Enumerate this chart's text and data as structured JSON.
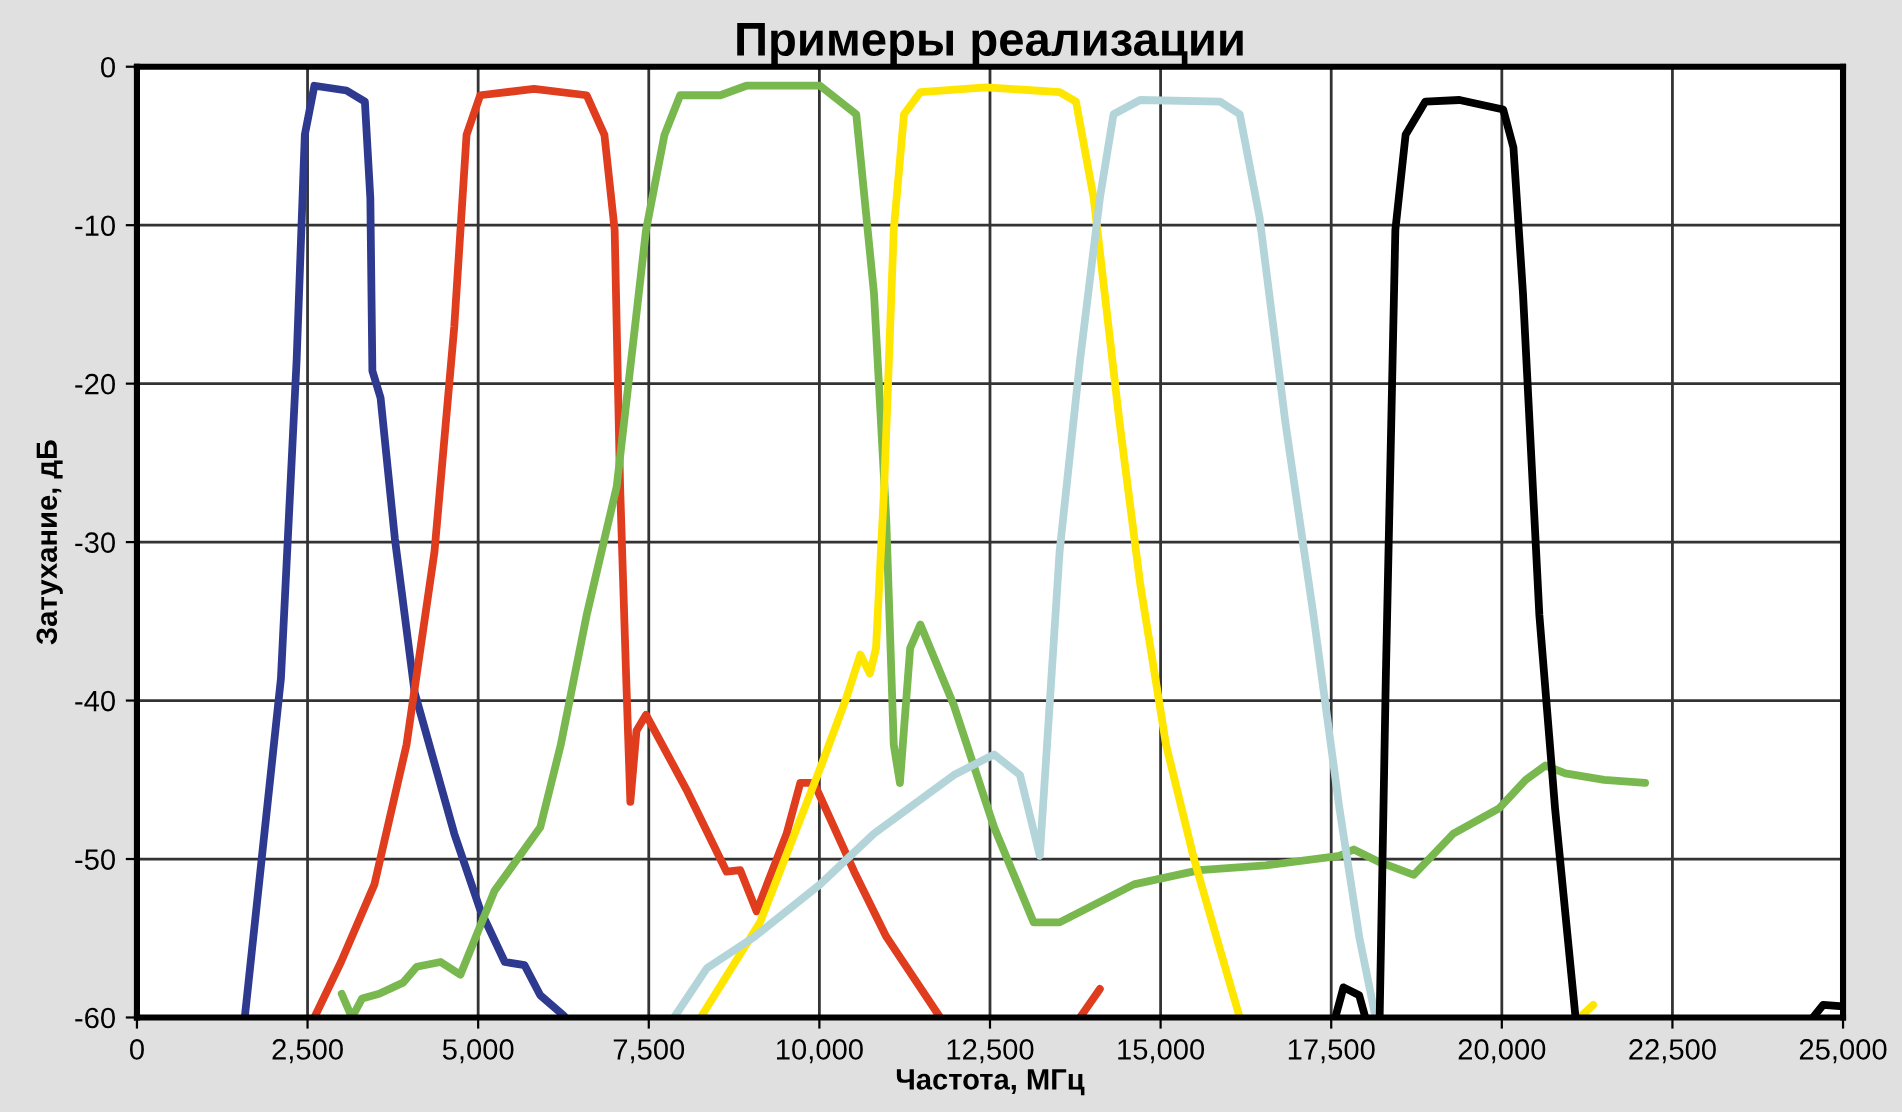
{
  "chart_data": {
    "type": "line",
    "title": "Примеры реализации",
    "xlabel": "Частота, МГц",
    "ylabel": "Затухание, дБ",
    "xlim": [
      0,
      25000
    ],
    "ylim": [
      -60,
      0
    ],
    "xticks": [
      0,
      {
        "value": 2500,
        "label": "2,500"
      },
      {
        "value": 5000,
        "label": "5,000"
      },
      {
        "value": 7500,
        "label": "7,500"
      },
      {
        "value": 10000,
        "label": "10,000"
      },
      {
        "value": 12500,
        "label": "12,500"
      },
      {
        "value": 15000,
        "label": "15,000"
      },
      {
        "value": 17500,
        "label": "17,500"
      },
      {
        "value": 20000,
        "label": "20,000"
      },
      {
        "value": 22500,
        "label": "22,500"
      },
      {
        "value": 25000,
        "label": "25,000"
      }
    ],
    "yticks": [
      -60,
      -50,
      -40,
      -30,
      -20,
      -10,
      0
    ],
    "grid": true,
    "marker": "none",
    "line_style": "solid",
    "series": [
      {
        "color": "#2e3a8f",
        "x": [
          1580,
          2110,
          2340,
          2460,
          2600,
          3070,
          3340,
          3420,
          3450,
          3570,
          3780,
          4070,
          4650,
          5030,
          5390,
          5680,
          5910,
          6260
        ],
        "values": [
          -60,
          -38.6,
          -18.5,
          -4.3,
          -1.2,
          -1.5,
          -2.2,
          -8.3,
          -19.2,
          -20.9,
          -29.8,
          -39.5,
          -48.4,
          -53.2,
          -56.5,
          -56.7,
          -58.6,
          -59.9
        ]
      },
      {
        "color": "#e03c1e",
        "x": [
          2600,
          2990,
          3480,
          3950,
          4360,
          4650,
          4830,
          5030,
          5820,
          6590,
          6850,
          7000,
          7080,
          7170,
          7230,
          7320,
          7460,
          8050,
          8640,
          8840,
          9080,
          9520,
          9720,
          9920,
          10510,
          10980,
          11770,
          12800,
          13820,
          14110
        ],
        "values": [
          -60,
          -56.5,
          -51.6,
          -42.8,
          -30.6,
          -16.4,
          -4.3,
          -1.8,
          -1.4,
          -1.8,
          -4.3,
          -10.3,
          -26.5,
          -38.7,
          -46.4,
          -41.9,
          -40.9,
          -45.6,
          -50.8,
          -50.7,
          -53.3,
          -48.4,
          -45.2,
          -45.2,
          -50.8,
          -54.9,
          -60,
          null,
          -60,
          -58.2
        ]
      },
      {
        "color": "#78b84e",
        "x": [
          3000,
          3150,
          3300,
          3550,
          3900,
          4100,
          4450,
          4740,
          5240,
          5910,
          6210,
          6590,
          7030,
          7460,
          7730,
          7960,
          8550,
          8930,
          10010,
          10540,
          10800,
          10980,
          11090,
          11180,
          11330,
          11480,
          11970,
          12560,
          13140,
          13520,
          14610,
          15570,
          16540,
          17620,
          17830,
          18210,
          18710,
          19290,
          19960,
          20350,
          20640,
          20930,
          21500,
          22100
        ],
        "values": [
          -58.5,
          -60,
          -58.8,
          -58.5,
          -57.8,
          -56.8,
          -56.5,
          -57.3,
          -52,
          -48,
          -42.8,
          -34.6,
          -26.5,
          -10.3,
          -4.3,
          -1.8,
          -1.8,
          -1.2,
          -1.2,
          -3,
          -14.3,
          -28.6,
          -42.8,
          -45.2,
          -36.7,
          -35.2,
          -40.3,
          -48,
          -54,
          -54,
          -51.6,
          -50.7,
          -50.4,
          -49.8,
          -49.4,
          -50.2,
          -51,
          -48.4,
          -46.8,
          -45,
          -44.1,
          -44.6,
          -45,
          -45.2
        ]
      },
      {
        "color": "#ffe600",
        "x": [
          8260,
          9130,
          10010,
          10390,
          10600,
          10740,
          10830,
          10950,
          11090,
          11240,
          11480,
          12440,
          13520,
          13760,
          14020,
          14400,
          14700,
          15080,
          15490,
          15870,
          16160,
          18500,
          21140,
          21340
        ],
        "values": [
          -60,
          -54,
          -44.3,
          -39.9,
          -37.1,
          -38.3,
          -36.7,
          -26.5,
          -10.3,
          -3,
          -1.6,
          -1.3,
          -1.6,
          -2.2,
          -8.3,
          -22.5,
          -32.6,
          -42.8,
          -50,
          -55.7,
          -60,
          null,
          -60,
          -59.2
        ]
      },
      {
        "color": "#b3d5da",
        "x": [
          7870,
          8350,
          9050,
          10010,
          10800,
          11970,
          12560,
          12940,
          13230,
          13520,
          13820,
          14110,
          14310,
          14700,
          15870,
          16160,
          16450,
          16830,
          17240,
          17620,
          17910,
          18150
        ],
        "values": [
          -60,
          -56.9,
          -54.9,
          -51.6,
          -48.4,
          -44.7,
          -43.4,
          -44.7,
          -49.8,
          -30.6,
          -18.5,
          -8.3,
          -3,
          -2.1,
          -2.2,
          -3,
          -9.5,
          -22.5,
          -34.6,
          -46.8,
          -54.9,
          -60
        ]
      },
      {
        "color": "#000000",
        "x": [
          17560,
          17680,
          17910,
          18000,
          18100,
          18210,
          18300,
          18440,
          18590,
          18880,
          19380,
          20020,
          20170,
          20310,
          20550,
          20780,
          21080,
          22800,
          24560,
          24710,
          25000
        ],
        "values": [
          -60,
          -58.1,
          -58.6,
          -60,
          null,
          -60,
          -38.6,
          -10.3,
          -4.3,
          -2.2,
          -2.1,
          -2.7,
          -5.1,
          -14.3,
          -34.6,
          -46.8,
          -60,
          null,
          -60,
          -59.2,
          -59.3
        ]
      }
    ]
  }
}
